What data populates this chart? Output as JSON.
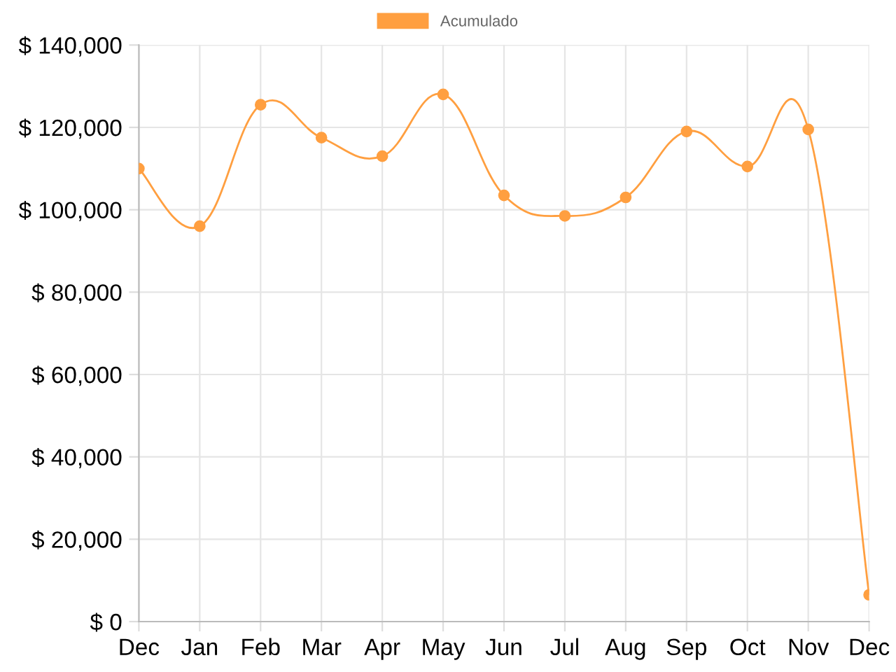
{
  "chart_data": {
    "type": "line",
    "categories": [
      "Dec",
      "Jan",
      "Feb",
      "Mar",
      "Apr",
      "May",
      "Jun",
      "Jul",
      "Aug",
      "Sep",
      "Oct",
      "Nov",
      "Dec"
    ],
    "series": [
      {
        "name": "Acumulado",
        "color": "#ff9f40",
        "values": [
          110000,
          96000,
          125500,
          117500,
          113000,
          128000,
          103500,
          98500,
          103000,
          119000,
          110500,
          119500,
          6500
        ]
      }
    ],
    "ylim": [
      0,
      140000
    ],
    "yticks": [
      {
        "value": 0,
        "label": "$ 0"
      },
      {
        "value": 20000,
        "label": "$ 20,000"
      },
      {
        "value": 40000,
        "label": "$ 40,000"
      },
      {
        "value": 60000,
        "label": "$ 60,000"
      },
      {
        "value": 80000,
        "label": "$ 80,000"
      },
      {
        "value": 100000,
        "label": "$ 100,000"
      },
      {
        "value": 120000,
        "label": "$ 120,000"
      },
      {
        "value": 140000,
        "label": "$ 140,000"
      }
    ],
    "grid": true,
    "legend": "top",
    "marker": "circle",
    "line_style": "solid"
  }
}
